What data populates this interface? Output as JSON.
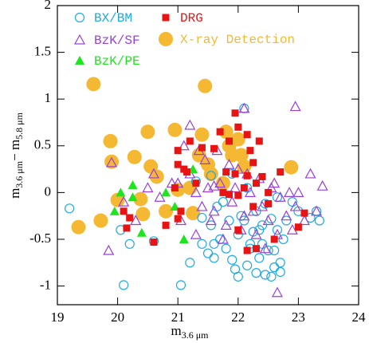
{
  "chart_data": {
    "type": "scatter",
    "xlabel": [
      "m",
      "3.6 μm"
    ],
    "ylabel": [
      "m",
      "3.6 μm",
      "− m",
      "5.8 μm"
    ],
    "xlim": [
      19,
      24
    ],
    "xticks": [
      19,
      20,
      21,
      22,
      23,
      24
    ],
    "ylim": [
      -1.2,
      2
    ],
    "yticks": [
      -1,
      -0.5,
      0,
      0.5,
      1,
      1.5,
      2
    ],
    "series": [
      {
        "name": "BX/BM",
        "color": "#1eaae6",
        "marker": "circle-open",
        "x": [
          19.2,
          20.05,
          20.2,
          20.1,
          20.6,
          21.05,
          21.4,
          21.5,
          21.6,
          21.55,
          21.7,
          21.8,
          21.9,
          21.95,
          22.0,
          22.05,
          22.1,
          22.15,
          22.2,
          22.25,
          22.3,
          22.35,
          22.4,
          22.45,
          22.5,
          22.55,
          22.6,
          22.65,
          22.7,
          22.75,
          21.65,
          21.75,
          21.85,
          22.0,
          22.2,
          22.4,
          22.55,
          22.6,
          22.7,
          22.3,
          22.45,
          22.65,
          23.3,
          23.2,
          23.35,
          22.1,
          21.4,
          21.55,
          21.9,
          22.8,
          22.9,
          23.0,
          21.2,
          21.6,
          22.35,
          22.15,
          21.3
        ],
        "y": [
          -0.17,
          -0.4,
          -0.55,
          -0.99,
          -0.52,
          -0.99,
          -0.55,
          -0.65,
          -0.7,
          -0.35,
          -0.5,
          -0.6,
          -0.72,
          -0.82,
          -0.45,
          -0.25,
          -0.3,
          -0.78,
          -0.6,
          -0.42,
          -0.86,
          -0.7,
          -0.55,
          -0.88,
          -0.62,
          -0.28,
          -0.8,
          -0.4,
          -0.75,
          -0.5,
          -0.15,
          -0.1,
          -0.3,
          -0.9,
          -0.55,
          -0.35,
          -0.9,
          -0.62,
          -0.85,
          -0.2,
          -0.12,
          -0.05,
          -0.2,
          -0.27,
          -0.3,
          0.9,
          -0.27,
          0.18,
          0.2,
          -0.3,
          -0.1,
          -0.2,
          -0.75,
          -0.55,
          -0.4,
          0.05,
          0.12
        ]
      },
      {
        "name": "BzK/SF",
        "color": "#9b3fd9",
        "marker": "triangle-open",
        "x": [
          19.9,
          20.1,
          20.3,
          19.85,
          20.5,
          20.7,
          20.9,
          21.05,
          21.2,
          21.3,
          21.4,
          21.5,
          21.6,
          21.7,
          21.8,
          21.9,
          22.0,
          22.1,
          22.2,
          22.3,
          22.4,
          22.5,
          22.6,
          22.7,
          22.8,
          22.9,
          23.0,
          23.1,
          23.2,
          23.4,
          21.45,
          21.65,
          21.75,
          21.95,
          22.05,
          22.25,
          22.45,
          22.65,
          22.85,
          21.55,
          21.85,
          22.15,
          22.35,
          22.55,
          22.95,
          23.3,
          21.2,
          21.35,
          22.1,
          22.65,
          21.6,
          21.1,
          20.6,
          21.0,
          22.95,
          21.3
        ],
        "y": [
          0.32,
          -0.1,
          -0.3,
          -0.62,
          0.05,
          -0.05,
          0.1,
          -0.3,
          0.2,
          0.0,
          -0.15,
          0.05,
          -0.2,
          0.1,
          -0.35,
          -0.1,
          0.25,
          -0.25,
          0.0,
          -0.45,
          -0.15,
          -0.3,
          0.1,
          -0.05,
          -0.25,
          -0.4,
          0.0,
          -0.3,
          0.2,
          0.07,
          0.35,
          0.45,
          -0.5,
          0.05,
          -0.4,
          -0.2,
          -0.6,
          -0.45,
          0.0,
          -0.3,
          0.3,
          0.2,
          0.15,
          0.05,
          -0.15,
          -0.2,
          0.72,
          0.45,
          0.9,
          -1.07,
          0.07,
          0.5,
          0.2,
          0.1,
          0.92,
          -0.45
        ]
      },
      {
        "name": "BzK/PE",
        "color": "#1ee61e",
        "marker": "triangle",
        "x": [
          20.25,
          20.25,
          19.95,
          20.05,
          20.4,
          20.8,
          21.1,
          21.25,
          20.95
        ],
        "y": [
          0.08,
          -0.05,
          -0.2,
          0.0,
          -0.43,
          0.0,
          -0.5,
          0.25,
          -0.15
        ]
      },
      {
        "name": "DRG",
        "color": "#e81414",
        "marker": "square",
        "x": [
          21.0,
          21.2,
          21.0,
          21.1,
          21.15,
          21.4,
          21.6,
          21.85,
          21.95,
          22.0,
          22.15,
          22.2,
          22.25,
          22.35,
          22.1,
          21.8,
          21.95,
          21.85,
          22.0,
          21.75,
          22.15,
          22.3,
          22.4,
          22.5,
          22.7,
          23.1,
          23.0,
          22.5,
          22.6,
          22.3,
          22.15,
          21.7,
          21.0,
          21.05,
          20.8,
          20.6,
          20.2,
          20.1,
          20.15,
          21.3,
          20.95,
          22.25,
          22.0
        ],
        "y": [
          0.45,
          0.55,
          0.3,
          0.25,
          0.22,
          0.48,
          0.47,
          0.55,
          0.85,
          0.7,
          0.62,
          0.45,
          0.32,
          0.55,
          0.05,
          0.22,
          0.2,
          -0.02,
          -0.03,
          0.0,
          0.18,
          0.1,
          0.17,
          0.0,
          0.22,
          -0.22,
          -0.37,
          -0.12,
          -0.5,
          -0.6,
          -0.62,
          0.65,
          -0.28,
          -0.2,
          -0.35,
          -0.53,
          -0.27,
          -0.2,
          -0.38,
          0.1,
          0.05,
          -0.15,
          -0.4
        ]
      },
      {
        "name": "X-ray Detection",
        "color": "#f5b833",
        "marker": "circle",
        "x": [
          19.35,
          19.6,
          19.88,
          19.9,
          20.0,
          19.72,
          20.28,
          20.55,
          20.38,
          20.5,
          20.65,
          20.42,
          20.8,
          20.95,
          21.0,
          21.2,
          21.25,
          21.4,
          21.35,
          21.5,
          21.55,
          21.8,
          21.85,
          21.9,
          22.0,
          22.05,
          22.1,
          21.45,
          22.88,
          21.75
        ],
        "y": [
          -0.37,
          1.16,
          0.55,
          0.33,
          -0.08,
          -0.3,
          0.38,
          0.28,
          -0.07,
          0.65,
          0.17,
          -0.23,
          -0.2,
          0.67,
          0.03,
          0.05,
          -0.22,
          0.62,
          0.4,
          0.3,
          0.2,
          0.65,
          0.5,
          0.4,
          0.57,
          0.4,
          0.28,
          1.14,
          0.27,
          0.1
        ]
      }
    ]
  }
}
